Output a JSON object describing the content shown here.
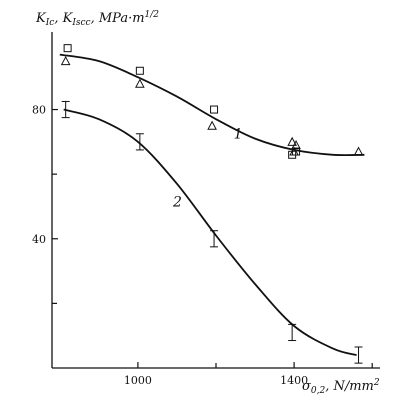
{
  "chart_data": {
    "type": "line",
    "title": "",
    "ylabel": "K_Ic, K_Iscc, MPa·m^1/2",
    "xlabel": "σ_0.2, N/mm²",
    "xlim": [
      780,
      1620
    ],
    "ylim": [
      0,
      104
    ],
    "x_ticks": [
      {
        "value": 1000,
        "label": "1000"
      },
      {
        "value": 1400,
        "label": "1400"
      }
    ],
    "y_ticks": [
      {
        "value": 40,
        "label": "40"
      },
      {
        "value": 80,
        "label": "80"
      }
    ],
    "minor_x_ticks": [
      1200,
      1600
    ],
    "minor_y_ticks": [
      20,
      60
    ],
    "grid": false,
    "series": [
      {
        "name": "1",
        "curve": {
          "x": [
            800,
            900,
            1000,
            1100,
            1200,
            1300,
            1400,
            1500,
            1580
          ],
          "y": [
            97,
            95,
            90,
            84,
            77,
            71,
            67.5,
            66,
            66
          ]
        },
        "squares": {
          "x": [
            820,
            1005,
            1195,
            1395,
            1405
          ],
          "y": [
            99,
            92,
            80,
            66,
            67
          ]
        },
        "triangles": {
          "x": [
            815,
            1005,
            1190,
            1395,
            1405,
            1400,
            1565
          ],
          "y": [
            95,
            88,
            75,
            70,
            69,
            67,
            67
          ]
        }
      },
      {
        "name": "2",
        "curve": {
          "x": [
            810,
            900,
            1000,
            1100,
            1200,
            1300,
            1400,
            1500,
            1560
          ],
          "y": [
            80,
            77,
            70,
            57,
            41,
            26,
            13,
            6,
            4
          ]
        },
        "points": {
          "x": [
            815,
            1005,
            1195,
            1395,
            1565
          ],
          "y": [
            80,
            70,
            40,
            11,
            4
          ]
        },
        "err": [
          2.5,
          2.5,
          2.5,
          2.5,
          2.5
        ]
      }
    ]
  }
}
